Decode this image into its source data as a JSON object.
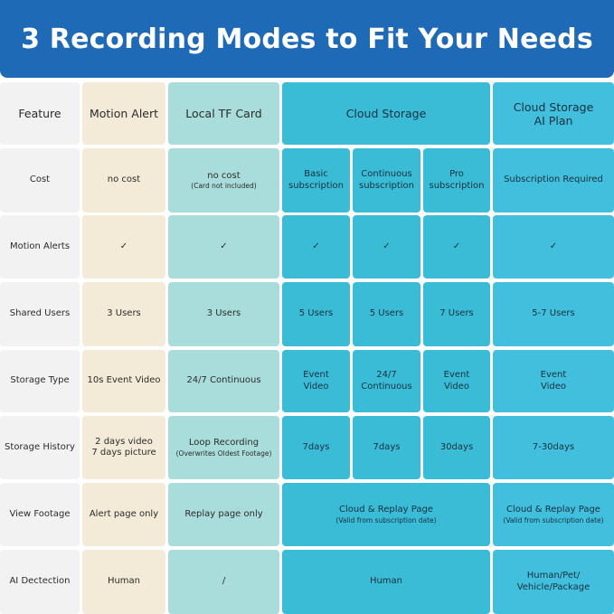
{
  "title": "3 Recording Modes to Fit Your Needs",
  "table": {
    "rows": [
      [
        {
          "lines": [
            "Feature"
          ]
        },
        {
          "lines": [
            "Motion Alert"
          ]
        },
        {
          "lines": [
            "Local TF Card"
          ]
        },
        {
          "lines": [
            "Cloud Storage"
          ]
        },
        {
          "lines": [
            "Cloud Storage",
            "AI Plan"
          ]
        }
      ],
      [
        {
          "lines": [
            "Cost"
          ]
        },
        {
          "lines": [
            "no cost"
          ]
        },
        {
          "lines": [
            "no cost"
          ],
          "note": "(Card not included)"
        },
        {
          "lines": [
            "Basic",
            "subscription"
          ]
        },
        {
          "lines": [
            "Continuous",
            "subscription"
          ]
        },
        {
          "lines": [
            "Pro",
            "subscription"
          ]
        },
        {
          "lines": [
            "Subscription Required"
          ]
        }
      ],
      [
        {
          "lines": [
            "Motion Alerts"
          ]
        },
        {
          "lines": [
            "✓"
          ]
        },
        {
          "lines": [
            "✓"
          ]
        },
        {
          "lines": [
            "✓"
          ]
        },
        {
          "lines": [
            "✓"
          ]
        },
        {
          "lines": [
            "✓"
          ]
        },
        {
          "lines": [
            "✓"
          ]
        }
      ],
      [
        {
          "lines": [
            "Shared Users"
          ]
        },
        {
          "lines": [
            "3 Users"
          ]
        },
        {
          "lines": [
            "3 Users"
          ]
        },
        {
          "lines": [
            "5 Users"
          ]
        },
        {
          "lines": [
            "5 Users"
          ]
        },
        {
          "lines": [
            "7 Users"
          ]
        },
        {
          "lines": [
            "5-7 Users"
          ]
        }
      ],
      [
        {
          "lines": [
            "Storage Type"
          ]
        },
        {
          "lines": [
            "10s Event Video"
          ]
        },
        {
          "lines": [
            "24/7 Continuous"
          ]
        },
        {
          "lines": [
            "Event",
            "Video"
          ]
        },
        {
          "lines": [
            "24/7",
            "Continuous"
          ]
        },
        {
          "lines": [
            "Event",
            "Video"
          ]
        },
        {
          "lines": [
            "Event",
            "Video"
          ]
        }
      ],
      [
        {
          "lines": [
            "Storage History"
          ]
        },
        {
          "lines": [
            "2 days video",
            "7 days picture"
          ]
        },
        {
          "lines": [
            "Loop Recording"
          ],
          "note": "(Overwrites Oldest Footage)"
        },
        {
          "lines": [
            "7days"
          ]
        },
        {
          "lines": [
            "7days"
          ]
        },
        {
          "lines": [
            "30days"
          ]
        },
        {
          "lines": [
            "7-30days"
          ]
        }
      ],
      [
        {
          "lines": [
            "View Footage"
          ]
        },
        {
          "lines": [
            "Alert page only"
          ]
        },
        {
          "lines": [
            "Replay page only"
          ]
        },
        {
          "lines": [
            "Cloud & Replay Page"
          ],
          "note": "(Valid from subscription date)"
        },
        {
          "lines": [
            "Cloud & Replay Page"
          ],
          "note": "(Valid from subscription date)"
        }
      ],
      [
        {
          "lines": [
            "AI Dectection"
          ]
        },
        {
          "lines": [
            "Human"
          ]
        },
        {
          "lines": [
            "/"
          ]
        },
        {
          "lines": [
            "Human"
          ]
        },
        {
          "lines": [
            "Human/Pet/",
            "Vehicle/Package"
          ]
        }
      ]
    ]
  }
}
